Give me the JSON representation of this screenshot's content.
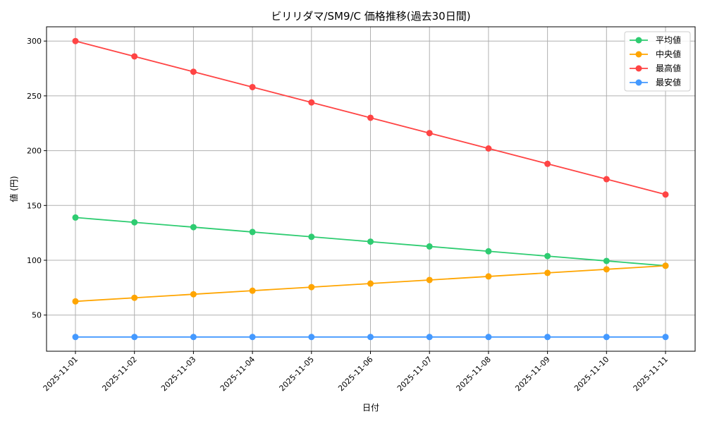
{
  "chart_data": {
    "type": "line",
    "title": "ビリリダマ/SM9/C 価格推移(過去30日間)",
    "xlabel": "日付",
    "ylabel": "値 (円)",
    "x": [
      "2025-11-01",
      "2025-11-02",
      "2025-11-03",
      "2025-11-04",
      "2025-11-05",
      "2025-11-06",
      "2025-11-07",
      "2025-11-08",
      "2025-11-09",
      "2025-11-10",
      "2025-11-11"
    ],
    "ylim": [
      17,
      313
    ],
    "yticks": [
      50,
      100,
      150,
      200,
      250,
      300
    ],
    "grid": true,
    "legend_position": "top-right",
    "series": [
      {
        "name": "平均値",
        "color": "#2ecc71",
        "values": [
          139,
          134.6,
          130.2,
          125.8,
          121.4,
          117,
          112.6,
          108.2,
          103.8,
          99.4,
          95
        ]
      },
      {
        "name": "中央値",
        "color": "#ffa500",
        "values": [
          62.5,
          65.75,
          69,
          72.25,
          75.5,
          78.75,
          82,
          85.25,
          88.5,
          91.75,
          95
        ]
      },
      {
        "name": "最高値",
        "color": "#ff4444",
        "values": [
          300,
          286,
          272,
          258,
          244,
          230,
          216,
          202,
          188,
          174,
          160
        ]
      },
      {
        "name": "最安値",
        "color": "#4499ff",
        "values": [
          30,
          30,
          30,
          30,
          30,
          30,
          30,
          30,
          30,
          30,
          30
        ]
      }
    ]
  }
}
